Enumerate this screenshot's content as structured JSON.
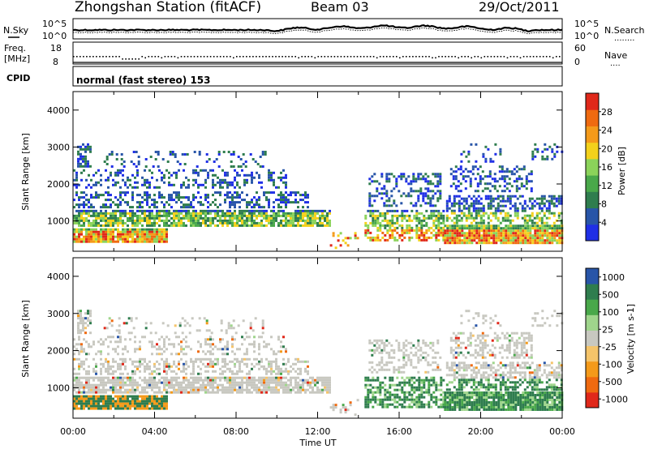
{
  "header": {
    "title": "Zhongshan Station (fitACF)",
    "beam": "Beam 03",
    "date": "29/Oct/2011"
  },
  "strips": {
    "nsky_label": "N.Sky",
    "nsearch_label": "N.Search",
    "nsky_ticks": [
      "10^5",
      "10^0"
    ],
    "nsearch_ticks": [
      "10^5",
      "10^0"
    ],
    "freq_label_line1": "Freq.",
    "freq_label_line2": "[MHz]",
    "freq_ticks": [
      "18",
      "8"
    ],
    "nave_label": "Nave",
    "nave_ticks": [
      "60",
      "0"
    ],
    "cpid_label": "CPID",
    "cpid_text": "normal (fast stereo) 153"
  },
  "colors": {
    "power": [
      "#1f2fe6",
      "#2855a8",
      "#2f7d4e",
      "#49a84a",
      "#8bd35a",
      "#f3d11b",
      "#f49a1a",
      "#ef6a10",
      "#e0281a"
    ],
    "velocity": [
      "#e0281a",
      "#ef6a10",
      "#f49a1a",
      "#f5c46a",
      "#c8c8c0",
      "#9fd58c",
      "#49a84a",
      "#2f7d4e",
      "#2855a8"
    ]
  },
  "chart_data": [
    {
      "type": "heatmap",
      "name": "power",
      "ylabel": "Slant Range [km]",
      "xlabel": "Time UT",
      "x_ticks": [
        "00:00",
        "04:00",
        "08:00",
        "12:00",
        "16:00",
        "20:00",
        "00:00"
      ],
      "xlim": [
        0,
        24
      ],
      "y_ticks": [
        "1000",
        "2000",
        "3000",
        "4000"
      ],
      "ylim": [
        180,
        4500
      ],
      "colorbar_label": "Power [dB]",
      "colorbar_ticks": [
        "4",
        "8",
        "12",
        "16",
        "20",
        "24",
        "28"
      ]
    },
    {
      "type": "heatmap",
      "name": "velocity",
      "ylabel": "Slant Range [km]",
      "xlabel": "Time UT",
      "x_ticks": [
        "00:00",
        "04:00",
        "08:00",
        "12:00",
        "16:00",
        "20:00",
        "00:00"
      ],
      "xlim": [
        0,
        24
      ],
      "y_ticks": [
        "1000",
        "2000",
        "3000",
        "4000"
      ],
      "ylim": [
        180,
        4500
      ],
      "colorbar_label": "Velocity [m s-1]",
      "colorbar_ticks": [
        "1000",
        "500",
        "100",
        "25",
        "-25",
        "-100",
        "-500",
        "-1000"
      ]
    }
  ],
  "x_axis": {
    "label": "Time UT",
    "ticks": [
      "00:00",
      "04:00",
      "08:00",
      "12:00",
      "16:00",
      "20:00",
      "00:00"
    ]
  }
}
